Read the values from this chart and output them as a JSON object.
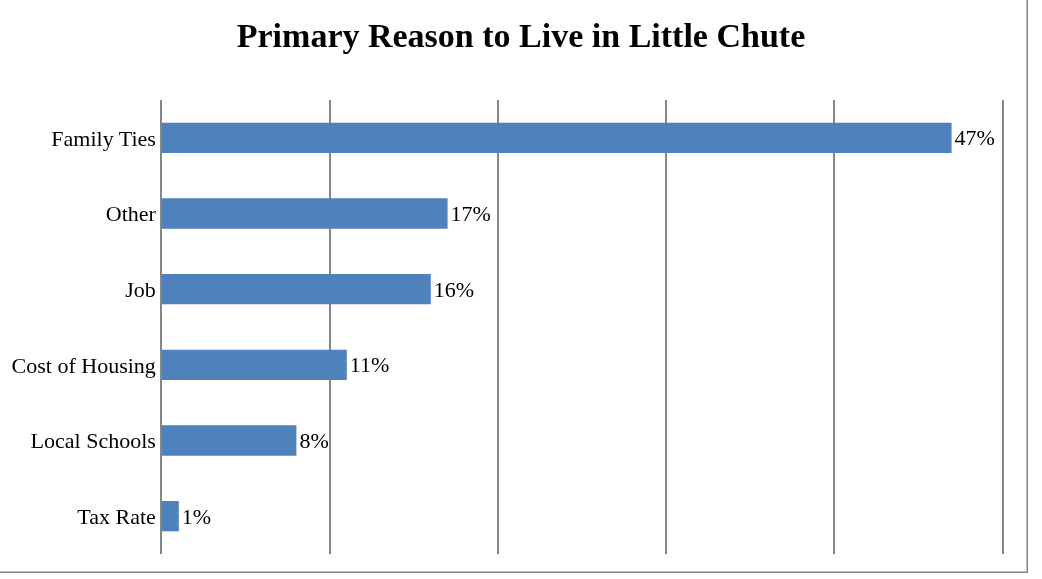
{
  "chart_data": {
    "type": "bar",
    "orientation": "horizontal",
    "title": "Primary Reason to Live in Little Chute",
    "categories": [
      "Family Ties",
      "Other",
      "Job",
      "Cost of Housing",
      "Local Schools",
      "Tax Rate"
    ],
    "values": [
      47,
      17,
      16,
      11,
      8,
      1
    ],
    "value_labels": [
      "47%",
      "17%",
      "16%",
      "11%",
      "8%",
      "1%"
    ],
    "color": "#4f81bd",
    "xlim": [
      0,
      50
    ],
    "xticks": [
      {
        "value": 0,
        "label": null
      },
      {
        "value": 10,
        "label": null
      },
      {
        "value": 20,
        "label": null
      },
      {
        "value": 30,
        "label": null
      },
      {
        "value": 40,
        "label": null
      },
      {
        "value": 50,
        "label": null
      }
    ],
    "grid": "x",
    "tick_labels": "y"
  }
}
